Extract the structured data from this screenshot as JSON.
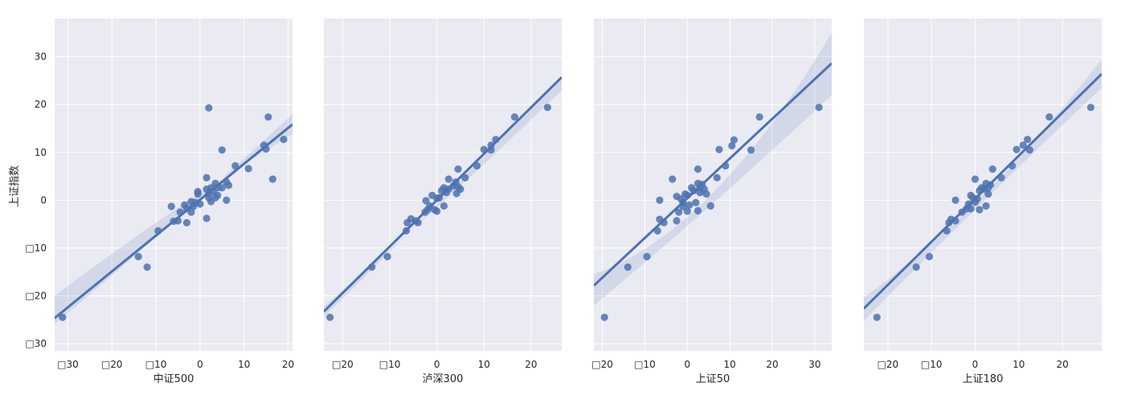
{
  "figure": {
    "ylabel": "上证指数",
    "background": "#ffffff",
    "panel_bg": "#eaeaf2",
    "grid_color": "#ffffff",
    "point_color": "#4c72b0",
    "line_color": "#4c72b0",
    "band_color": "#4c72b0"
  },
  "chart_data": [
    {
      "type": "scatter",
      "subtype": "regplot",
      "xlabel": "中证500",
      "ylabel": "上证指数",
      "xlim": [
        -33,
        21
      ],
      "ylim": [
        -31.5,
        38
      ],
      "xticks": [
        -30,
        -20,
        -10,
        0,
        10,
        20
      ],
      "xtick_labels": [
        "□30",
        "□20",
        "□10",
        "0",
        "10",
        "20"
      ],
      "yticks": [
        -30,
        -20,
        -10,
        0,
        10,
        20,
        30
      ],
      "ytick_labels": [
        "□30",
        "□20",
        "□10",
        "0",
        "10",
        "20",
        "30"
      ],
      "show_yticks": true,
      "regression": {
        "slope": 0.75,
        "intercept": 0.1
      },
      "band": {
        "left": [
          -25.9,
          -20
        ],
        "mid": [
          -4.5,
          -2.2
        ],
        "right": [
          18,
          13.8
        ]
      },
      "points": [
        [
          -31.2,
          -24.5
        ],
        [
          -14,
          -11.8
        ],
        [
          -12,
          -14
        ],
        [
          -9.5,
          -6.4
        ],
        [
          -6.5,
          -1.3
        ],
        [
          -6,
          -4.4
        ],
        [
          -5,
          -4.3
        ],
        [
          -4.5,
          -2.5
        ],
        [
          -3.5,
          -1
        ],
        [
          -3,
          -4.7
        ],
        [
          -3,
          -1.7
        ],
        [
          -2,
          -0.3
        ],
        [
          -2,
          -2.5
        ],
        [
          -1.5,
          -1.3
        ],
        [
          -1,
          -0.5
        ],
        [
          -0.5,
          1.3
        ],
        [
          -0.5,
          1.8
        ],
        [
          0,
          -0.8
        ],
        [
          1.5,
          4.7
        ],
        [
          1.5,
          2.3
        ],
        [
          1.5,
          -3.8
        ],
        [
          2,
          19.3
        ],
        [
          2,
          0.5
        ],
        [
          2,
          1.4
        ],
        [
          2.5,
          2.6
        ],
        [
          2.5,
          -0.3
        ],
        [
          3,
          1.8
        ],
        [
          3.5,
          3.5
        ],
        [
          3.5,
          0.5
        ],
        [
          4,
          1
        ],
        [
          4,
          2.6
        ],
        [
          5,
          10.5
        ],
        [
          5,
          2.6
        ],
        [
          6,
          3.8
        ],
        [
          6,
          0
        ],
        [
          6.5,
          3.1
        ],
        [
          8,
          7.2
        ],
        [
          11,
          6.6
        ],
        [
          14.5,
          11.5
        ],
        [
          15,
          10.7
        ],
        [
          15.5,
          17.4
        ],
        [
          16.5,
          4.4
        ],
        [
          19,
          12.7
        ]
      ]
    },
    {
      "type": "scatter",
      "subtype": "regplot",
      "xlabel": "泸深300",
      "ylabel": "",
      "xlim": [
        -24,
        26.5
      ],
      "ylim": [
        -31.5,
        38
      ],
      "xticks": [
        -20,
        -10,
        0,
        10,
        20
      ],
      "xtick_labels": [
        "□20",
        "□10",
        "0",
        "10",
        "20"
      ],
      "show_yticks": false,
      "regression": {
        "slope": 0.97,
        "intercept": 0.0
      },
      "band": {
        "left": [
          -24.5,
          -22.2
        ],
        "mid": [
          0.4,
          -0.4
        ],
        "right": [
          26,
          23
        ]
      },
      "points": [
        [
          -22.7,
          -24.5
        ],
        [
          -13.8,
          -14
        ],
        [
          -10.5,
          -11.8
        ],
        [
          -6.5,
          -6.4
        ],
        [
          -6.3,
          -4.7
        ],
        [
          -5.5,
          -3.9
        ],
        [
          -4.5,
          -4.3
        ],
        [
          -4,
          -4.7
        ],
        [
          -2.5,
          -2.5
        ],
        [
          -2.3,
          -0.1
        ],
        [
          -2,
          -2
        ],
        [
          -1.5,
          -1.2
        ],
        [
          -1,
          1
        ],
        [
          -0.5,
          -2
        ],
        [
          0,
          0.4
        ],
        [
          0,
          -2.3
        ],
        [
          0.5,
          0.5
        ],
        [
          1,
          2
        ],
        [
          1.5,
          -1.2
        ],
        [
          1.5,
          2.6
        ],
        [
          2,
          1.6
        ],
        [
          2.5,
          4.4
        ],
        [
          2.5,
          2.3
        ],
        [
          3.5,
          3
        ],
        [
          4,
          3.8
        ],
        [
          4.2,
          1.4
        ],
        [
          4.5,
          2.8
        ],
        [
          4.5,
          6.5
        ],
        [
          5,
          2.3
        ],
        [
          6,
          4.7
        ],
        [
          8.5,
          7.2
        ],
        [
          10,
          10.6
        ],
        [
          11.5,
          10.5
        ],
        [
          11.5,
          11.5
        ],
        [
          12.5,
          12.7
        ],
        [
          16.5,
          17.4
        ],
        [
          23.5,
          19.4
        ]
      ]
    },
    {
      "type": "scatter",
      "subtype": "regplot",
      "xlabel": "上证50",
      "ylabel": "",
      "xlim": [
        -22,
        34
      ],
      "ylim": [
        -31.5,
        38
      ],
      "xticks": [
        -20,
        -10,
        0,
        10,
        20,
        30
      ],
      "xtick_labels": [
        "□20",
        "□10",
        "0",
        "10",
        "20",
        "30"
      ],
      "show_yticks": false,
      "regression": {
        "slope": 0.83,
        "intercept": 0.4
      },
      "band": {
        "left": [
          -15.5,
          -22
        ],
        "mid": [
          1.5,
          -0.7
        ],
        "right": [
          35,
          22
        ]
      },
      "points": [
        [
          -19.5,
          -24.5
        ],
        [
          -14,
          -14
        ],
        [
          -9.5,
          -11.8
        ],
        [
          -7,
          -6.4
        ],
        [
          -6.5,
          -4
        ],
        [
          -6.5,
          0
        ],
        [
          -5.5,
          -4.7
        ],
        [
          -3.5,
          4.4
        ],
        [
          -2.5,
          -4.3
        ],
        [
          -2.5,
          0.8
        ],
        [
          -2,
          -2.5
        ],
        [
          -1.5,
          0.3
        ],
        [
          -1,
          -0.5
        ],
        [
          -1,
          -1.3
        ],
        [
          -0.5,
          1.3
        ],
        [
          0,
          1
        ],
        [
          0,
          -2.3
        ],
        [
          0.5,
          -1
        ],
        [
          1,
          2.6
        ],
        [
          1.5,
          2
        ],
        [
          2,
          -0.5
        ],
        [
          2.5,
          6.5
        ],
        [
          2.5,
          3.5
        ],
        [
          2.5,
          -2.2
        ],
        [
          3,
          2.6
        ],
        [
          3,
          1.6
        ],
        [
          3.5,
          3.3
        ],
        [
          4,
          2.3
        ],
        [
          4.5,
          1.3
        ],
        [
          5.5,
          -1.2
        ],
        [
          7,
          4.7
        ],
        [
          7.5,
          10.6
        ],
        [
          9,
          7.2
        ],
        [
          10.5,
          11.4
        ],
        [
          11,
          12.6
        ],
        [
          15,
          10.5
        ],
        [
          17,
          17.4
        ],
        [
          31,
          19.4
        ]
      ]
    },
    {
      "type": "scatter",
      "subtype": "regplot",
      "xlabel": "上证180",
      "ylabel": "",
      "xlim": [
        -25.5,
        29
      ],
      "ylim": [
        -31.5,
        38
      ],
      "xticks": [
        -20,
        -10,
        0,
        10,
        20
      ],
      "xtick_labels": [
        "□20",
        "□10",
        "0",
        "10",
        "20"
      ],
      "show_yticks": false,
      "regression": {
        "slope": 0.9,
        "intercept": 0.3
      },
      "band": {
        "left": [
          -20.3,
          -25.2
        ],
        "mid": [
          1,
          -0.4
        ],
        "right": [
          29.5,
          23.5
        ]
      },
      "points": [
        [
          -22.5,
          -24.5
        ],
        [
          -13.5,
          -14
        ],
        [
          -10.5,
          -11.8
        ],
        [
          -6.5,
          -6.4
        ],
        [
          -6,
          -4.7
        ],
        [
          -5.5,
          -4
        ],
        [
          -4.5,
          -4.3
        ],
        [
          -4.5,
          0
        ],
        [
          -3,
          -2.5
        ],
        [
          -2,
          -1.8
        ],
        [
          -1.5,
          -0.8
        ],
        [
          -1,
          1
        ],
        [
          -1,
          -1.8
        ],
        [
          -0.5,
          0.5
        ],
        [
          0,
          4.4
        ],
        [
          0,
          -0.4
        ],
        [
          0.5,
          0.3
        ],
        [
          1,
          -2
        ],
        [
          1,
          2
        ],
        [
          1.5,
          2.6
        ],
        [
          2,
          2.3
        ],
        [
          2.5,
          -1.2
        ],
        [
          2.5,
          3.5
        ],
        [
          3,
          1.3
        ],
        [
          3,
          2.6
        ],
        [
          3.5,
          3.2
        ],
        [
          4,
          6.5
        ],
        [
          6,
          4.7
        ],
        [
          8.5,
          7.2
        ],
        [
          9.5,
          10.6
        ],
        [
          11,
          11.5
        ],
        [
          12,
          12.7
        ],
        [
          12.5,
          10.5
        ],
        [
          17,
          17.4
        ],
        [
          26.5,
          19.4
        ]
      ]
    }
  ]
}
